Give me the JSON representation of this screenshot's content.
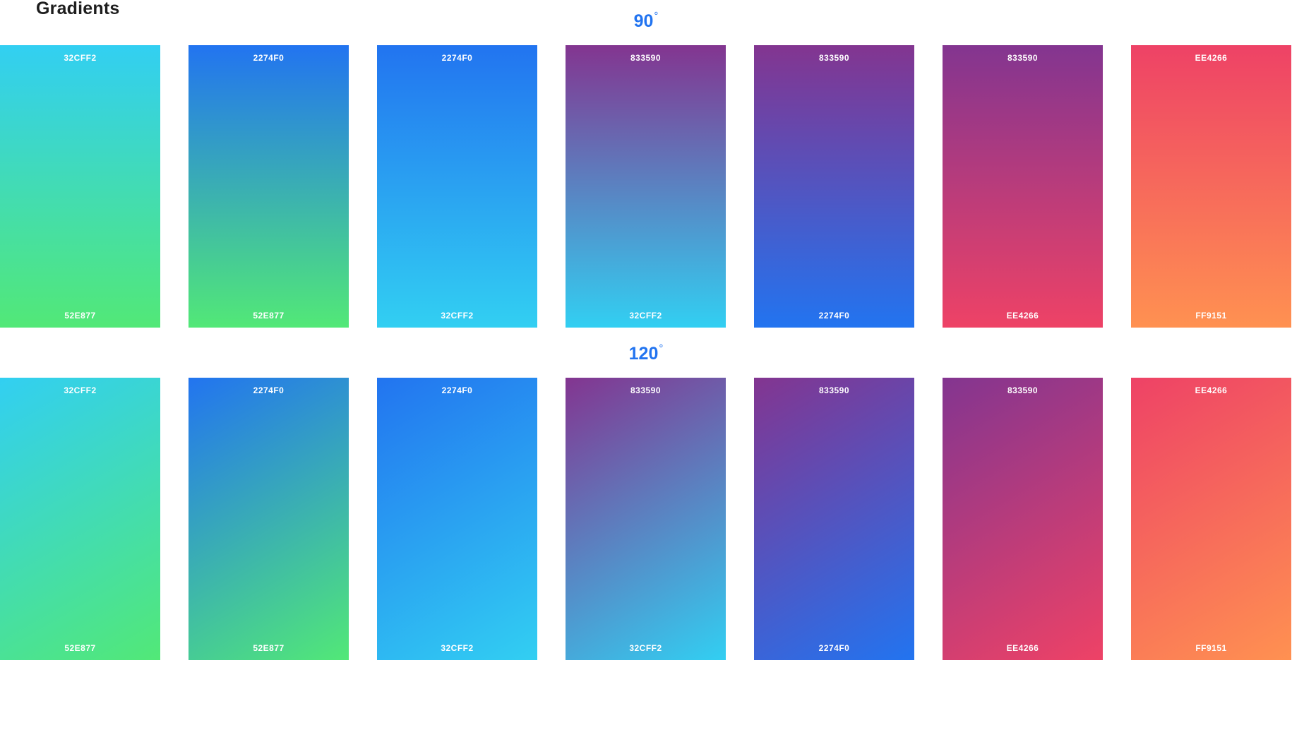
{
  "page_title": "Gradients",
  "sections": [
    {
      "angle_value": "90",
      "angle_unit": "°",
      "angle_deg": 180,
      "swatches": [
        {
          "top_label": "32CFF2",
          "bottom_label": "52E877",
          "from": "#32CFF2",
          "to": "#52E877"
        },
        {
          "top_label": "2274F0",
          "bottom_label": "52E877",
          "from": "#2274F0",
          "to": "#52E877"
        },
        {
          "top_label": "2274F0",
          "bottom_label": "32CFF2",
          "from": "#2274F0",
          "to": "#32CFF2"
        },
        {
          "top_label": "833590",
          "bottom_label": "32CFF2",
          "from": "#833590",
          "to": "#32CFF2"
        },
        {
          "top_label": "833590",
          "bottom_label": "2274F0",
          "from": "#833590",
          "to": "#2274F0"
        },
        {
          "top_label": "833590",
          "bottom_label": "EE4266",
          "from": "#833590",
          "to": "#EE4266"
        },
        {
          "top_label": "EE4266",
          "bottom_label": "FF9151",
          "from": "#EE4266",
          "to": "#FF9151"
        }
      ]
    },
    {
      "angle_value": "120",
      "angle_unit": "°",
      "angle_deg": 150,
      "swatches": [
        {
          "top_label": "32CFF2",
          "bottom_label": "52E877",
          "from": "#32CFF2",
          "to": "#52E877"
        },
        {
          "top_label": "2274F0",
          "bottom_label": "52E877",
          "from": "#2274F0",
          "to": "#52E877"
        },
        {
          "top_label": "2274F0",
          "bottom_label": "32CFF2",
          "from": "#2274F0",
          "to": "#32CFF2"
        },
        {
          "top_label": "833590",
          "bottom_label": "32CFF2",
          "from": "#833590",
          "to": "#32CFF2"
        },
        {
          "top_label": "833590",
          "bottom_label": "2274F0",
          "from": "#833590",
          "to": "#2274F0"
        },
        {
          "top_label": "833590",
          "bottom_label": "EE4266",
          "from": "#833590",
          "to": "#EE4266"
        },
        {
          "top_label": "EE4266",
          "bottom_label": "FF9151",
          "from": "#EE4266",
          "to": "#FF9151"
        }
      ]
    }
  ],
  "colors": {
    "heading_accent": "#2274F0",
    "title_text": "#1e1e1e"
  }
}
